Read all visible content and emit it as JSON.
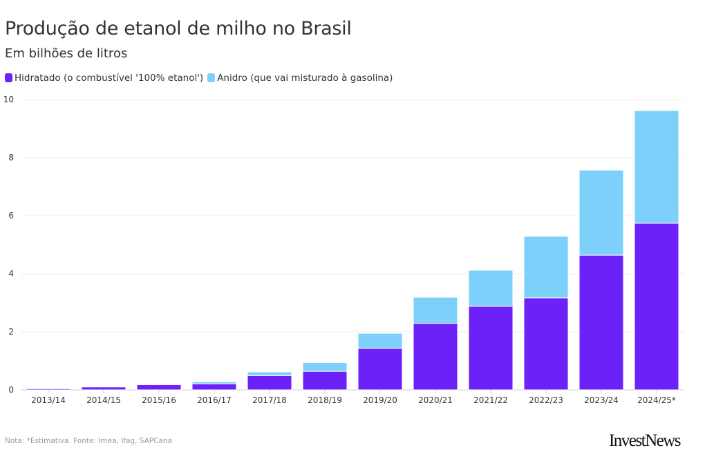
{
  "title": "Produção de etanol de milho no Brasil",
  "subtitle": "Em bilhões de litros",
  "note": "Nota: *Estimativa. Fonte: Imea, Ifag, SAPCana",
  "logo": "InvestNews",
  "chart_data": {
    "type": "bar",
    "stacked": true,
    "categories": [
      "2013/14",
      "2014/15",
      "2015/16",
      "2016/17",
      "2017/18",
      "2018/19",
      "2019/20",
      "2020/21",
      "2021/22",
      "2022/23",
      "2023/24",
      "2024/25*"
    ],
    "series": [
      {
        "name": "Hidratado (o combustível '100% etanol')",
        "color": "#6b21f7",
        "values": [
          0.04,
          0.1,
          0.18,
          0.21,
          0.49,
          0.64,
          1.43,
          2.29,
          2.88,
          3.17,
          4.64,
          5.74
        ]
      },
      {
        "name": "Anidro (que vai misturado à gasolina)",
        "color": "#7dd0fb",
        "values": [
          0.0,
          0.0,
          0.0,
          0.07,
          0.13,
          0.3,
          0.52,
          0.9,
          1.24,
          2.12,
          2.93,
          3.88
        ]
      }
    ],
    "ylim": [
      0,
      10
    ],
    "yticks": [
      "0",
      "2",
      "4",
      "6",
      "8",
      "10"
    ],
    "grid": true,
    "legend": "top-left"
  }
}
